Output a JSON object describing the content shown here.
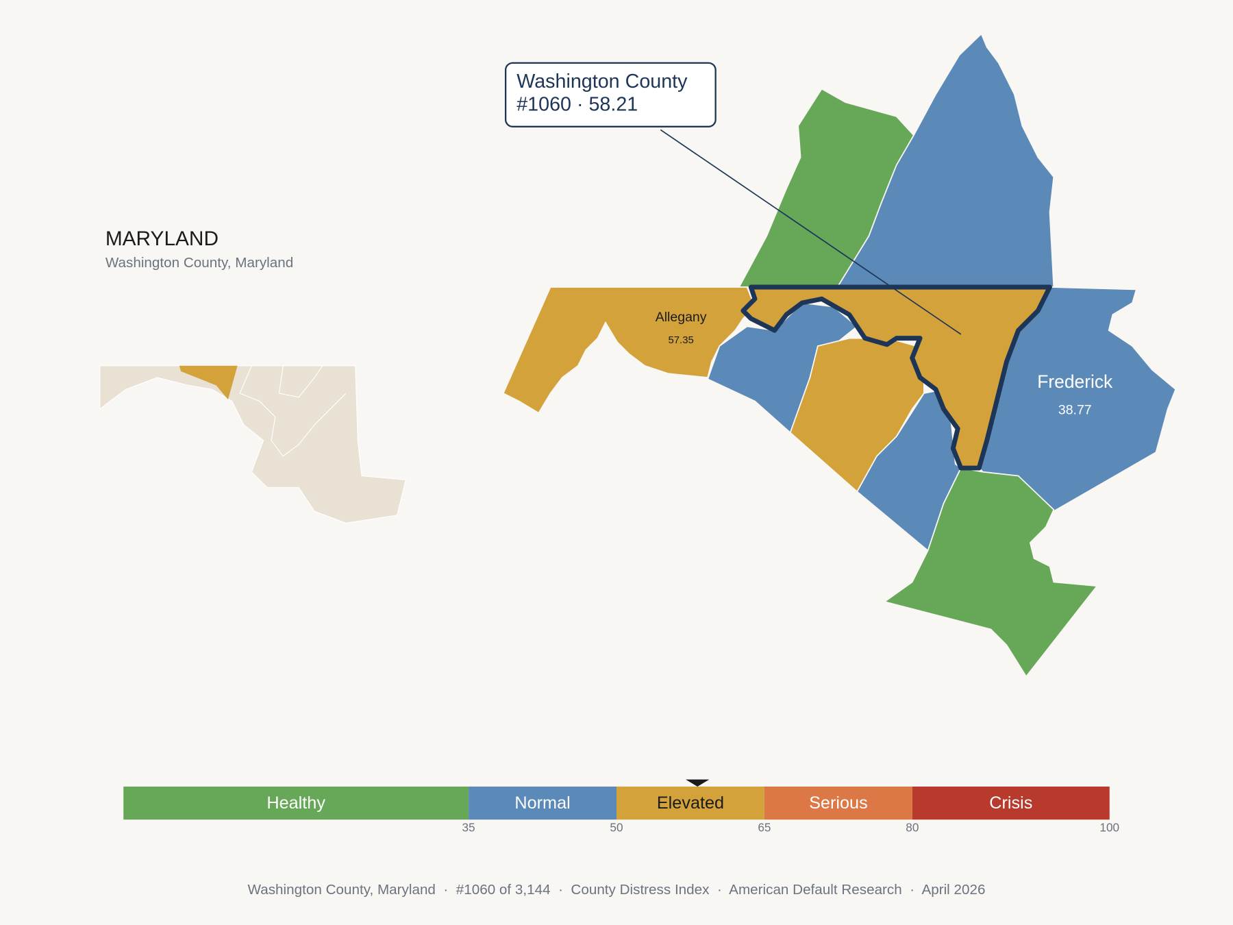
{
  "header": {
    "title": "MARYLAND",
    "subtitle": "Washington County, Maryland"
  },
  "callout": {
    "name": "Washington County",
    "detail": "#1060 · 58.21"
  },
  "map_labels": [
    {
      "name": "Allegany",
      "score": 57.35
    },
    {
      "name": "Frederick",
      "score": 38.77
    }
  ],
  "legend": {
    "range": [
      0,
      100
    ],
    "ticks": [
      35,
      50,
      65,
      80,
      100
    ],
    "bands": [
      {
        "name": "Healthy",
        "color": "#67a758",
        "text_color": "#ffffff"
      },
      {
        "name": "Normal",
        "color": "#5b89b8",
        "text_color": "#ffffff"
      },
      {
        "name": "Elevated",
        "color": "#d4a23a",
        "text_color": "#1b1b1b"
      },
      {
        "name": "Serious",
        "color": "#dc7746",
        "text_color": "#ffffff"
      },
      {
        "name": "Crisis",
        "color": "#b83a2c",
        "text_color": "#ffffff"
      }
    ],
    "marker": 58.21
  },
  "footer": "Washington County, Maryland  ·  #1060 of 3,144  ·  County Distress Index  ·  American Default Research  ·  April 2026"
}
